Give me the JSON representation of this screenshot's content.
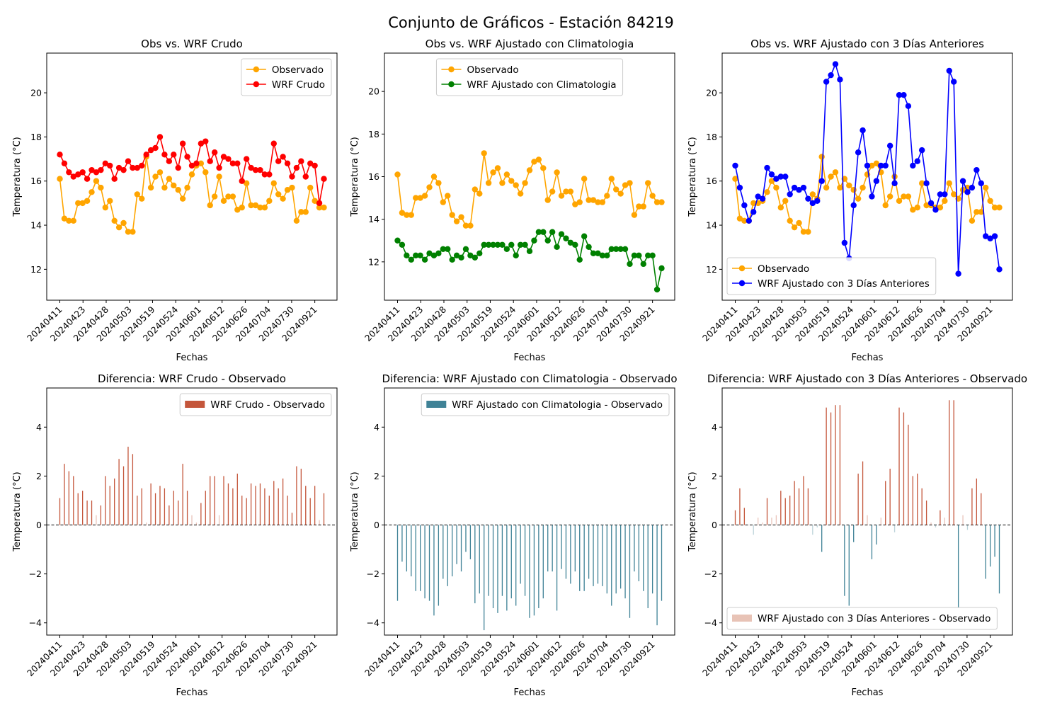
{
  "suptitle": "Conjunto de Gráficos - Estación 84219",
  "colors": {
    "observado": "#FFA500",
    "wrf_crudo": "#FF0000",
    "wrf_clim": "#008000",
    "wrf_3d": "#0000FF",
    "diff_crudo": "#C4563B",
    "diff_clim": "#3F8296",
    "diff_3d": "#E8C3B6",
    "diff_pos": "#C4563B",
    "diff_neg": "#3F8296"
  },
  "chart_data": [
    {
      "type": "line",
      "title": "Obs vs. WRF Crudo",
      "xlabel": "Fechas",
      "ylabel": "Temperatura (°C)",
      "ylim": [
        10.6,
        21.8
      ],
      "yticks": [
        12,
        14,
        16,
        18,
        20
      ],
      "x_tick_labels": [
        "20240411",
        "20240423",
        "20240428",
        "20240503",
        "20240519",
        "20240524",
        "20240601",
        "20240612",
        "20240626",
        "20240704",
        "20240730",
        "20240921"
      ],
      "legend_position": "upper-right",
      "grid": false,
      "series": [
        {
          "name": "Observado",
          "color_key": "observado",
          "values": [
            16.1,
            14.3,
            14.2,
            14.2,
            15.0,
            15.0,
            15.1,
            15.5,
            16.0,
            15.7,
            14.8,
            15.1,
            14.2,
            13.9,
            14.1,
            13.7,
            13.7,
            15.4,
            15.2,
            17.1,
            15.7,
            16.2,
            16.4,
            15.7,
            16.1,
            15.8,
            15.6,
            15.2,
            15.7,
            16.3,
            16.7,
            16.8,
            16.4,
            14.9,
            15.3,
            16.2,
            15.1,
            15.3,
            15.3,
            14.7,
            14.8,
            15.9,
            14.9,
            14.9,
            14.8,
            14.8,
            15.1,
            15.9,
            15.4,
            15.2,
            15.6,
            15.7,
            14.2,
            14.6,
            14.6,
            15.7,
            15.1,
            14.8,
            14.8
          ]
        },
        {
          "name": "WRF Crudo",
          "color_key": "wrf_crudo",
          "values": [
            17.2,
            16.8,
            16.4,
            16.2,
            16.3,
            16.4,
            16.1,
            16.5,
            16.4,
            16.5,
            16.8,
            16.7,
            16.1,
            16.6,
            16.5,
            16.9,
            16.6,
            16.6,
            16.7,
            17.2,
            17.4,
            17.5,
            18.0,
            17.2,
            16.9,
            17.2,
            16.6,
            17.7,
            17.1,
            16.7,
            16.8,
            17.7,
            17.8,
            16.9,
            17.3,
            16.6,
            17.1,
            17.0,
            16.8,
            16.8,
            16.0,
            17.0,
            16.6,
            16.5,
            16.5,
            16.3,
            16.3,
            17.7,
            16.9,
            17.1,
            16.8,
            16.2,
            16.6,
            16.9,
            16.2,
            16.8,
            16.7,
            15.0,
            16.1
          ]
        }
      ]
    },
    {
      "type": "line",
      "title": "Obs vs. WRF Ajustado con Climatologia",
      "xlabel": "Fechas",
      "ylabel": "Temperatura (°C)",
      "ylim": [
        10.2,
        21.8
      ],
      "yticks": [
        12,
        14,
        16,
        18,
        20
      ],
      "x_tick_labels": [
        "20240411",
        "20240423",
        "20240428",
        "20240503",
        "20240519",
        "20240524",
        "20240601",
        "20240612",
        "20240626",
        "20240704",
        "20240730",
        "20240921"
      ],
      "legend_position": "upper-center",
      "grid": false,
      "series": [
        {
          "name": "Observado",
          "color_key": "observado",
          "values": [
            16.1,
            14.3,
            14.2,
            14.2,
            15.0,
            15.0,
            15.1,
            15.5,
            16.0,
            15.7,
            14.8,
            15.1,
            14.2,
            13.9,
            14.1,
            13.7,
            13.7,
            15.4,
            15.2,
            17.1,
            15.7,
            16.2,
            16.4,
            15.7,
            16.1,
            15.8,
            15.6,
            15.2,
            15.7,
            16.3,
            16.7,
            16.8,
            16.4,
            14.9,
            15.3,
            16.2,
            15.1,
            15.3,
            15.3,
            14.7,
            14.8,
            15.9,
            14.9,
            14.9,
            14.8,
            14.8,
            15.1,
            15.9,
            15.4,
            15.2,
            15.6,
            15.7,
            14.2,
            14.6,
            14.6,
            15.7,
            15.1,
            14.8,
            14.8
          ]
        },
        {
          "name": "WRF Ajustado con Climatologia",
          "color_key": "wrf_clim",
          "values": [
            13.0,
            12.8,
            12.3,
            12.1,
            12.3,
            12.3,
            12.1,
            12.4,
            12.3,
            12.4,
            12.6,
            12.6,
            12.1,
            12.3,
            12.2,
            12.6,
            12.3,
            12.2,
            12.4,
            12.8,
            12.8,
            12.8,
            12.8,
            12.8,
            12.6,
            12.8,
            12.3,
            12.8,
            12.8,
            12.5,
            13.0,
            13.4,
            13.4,
            13.0,
            13.4,
            12.7,
            13.3,
            13.1,
            12.9,
            12.8,
            12.1,
            13.2,
            12.7,
            12.4,
            12.4,
            12.3,
            12.3,
            12.6,
            12.6,
            12.6,
            12.6,
            11.9,
            12.3,
            12.3,
            11.9,
            12.3,
            12.3,
            10.7,
            11.7
          ]
        }
      ]
    },
    {
      "type": "line",
      "title": "Obs vs. WRF Ajustado con 3 Días Anteriores",
      "xlabel": "Fechas",
      "ylabel": "Temperatura (°C)",
      "ylim": [
        10.6,
        21.8
      ],
      "yticks": [
        12,
        14,
        16,
        18,
        20
      ],
      "x_tick_labels": [
        "20240411",
        "20240423",
        "20240428",
        "20240503",
        "20240519",
        "20240524",
        "20240601",
        "20240612",
        "20240626",
        "20240704",
        "20240730",
        "20240921"
      ],
      "legend_position": "lower-left",
      "grid": false,
      "series": [
        {
          "name": "Observado",
          "color_key": "observado",
          "values": [
            16.1,
            14.3,
            14.2,
            14.2,
            15.0,
            15.0,
            15.1,
            15.5,
            16.0,
            15.7,
            14.8,
            15.1,
            14.2,
            13.9,
            14.1,
            13.7,
            13.7,
            15.4,
            15.2,
            17.1,
            15.7,
            16.2,
            16.4,
            15.7,
            16.1,
            15.8,
            15.6,
            15.2,
            15.7,
            16.3,
            16.7,
            16.8,
            16.4,
            14.9,
            15.3,
            16.2,
            15.1,
            15.3,
            15.3,
            14.7,
            14.8,
            15.9,
            14.9,
            14.9,
            14.8,
            14.8,
            15.1,
            15.9,
            15.4,
            15.2,
            15.6,
            15.7,
            14.2,
            14.6,
            14.6,
            15.7,
            15.1,
            14.8,
            14.8
          ]
        },
        {
          "name": "WRF Ajustado con 3 Días Anteriores",
          "color_key": "wrf_3d",
          "values": [
            16.7,
            15.7,
            14.9,
            14.2,
            14.6,
            15.3,
            15.2,
            16.6,
            16.3,
            16.1,
            16.2,
            16.2,
            15.4,
            15.7,
            15.6,
            15.7,
            15.2,
            15.0,
            15.1,
            16.0,
            20.5,
            20.8,
            21.3,
            20.6,
            13.2,
            12.5,
            14.9,
            17.3,
            18.3,
            16.7,
            15.3,
            16.0,
            16.7,
            16.7,
            17.6,
            15.9,
            19.9,
            19.9,
            19.4,
            16.7,
            16.9,
            17.4,
            15.9,
            15.0,
            14.7,
            15.4,
            15.4,
            21.0,
            20.5,
            11.8,
            16.0,
            15.5,
            15.7,
            16.5,
            15.9,
            13.5,
            13.4,
            13.5,
            12.0
          ]
        }
      ]
    },
    {
      "type": "bar",
      "title": "Diferencia: WRF Crudo - Observado",
      "xlabel": "Fechas",
      "ylabel": "Temperatura (°C)",
      "ylim": [
        -4.5,
        5.6
      ],
      "yticks": [
        -4,
        -2,
        0,
        2,
        4
      ],
      "x_tick_labels": [
        "20240411",
        "20240423",
        "20240428",
        "20240503",
        "20240519",
        "20240524",
        "20240601",
        "20240612",
        "20240626",
        "20240704",
        "20240730",
        "20240921"
      ],
      "legend_position": "upper-right",
      "zero_line": true,
      "series": [
        {
          "name": "WRF Crudo - Observado",
          "color_key": "diff_crudo",
          "values": [
            1.1,
            2.5,
            2.2,
            2.0,
            1.3,
            1.4,
            1.0,
            1.0,
            0.4,
            0.8,
            2.0,
            1.6,
            1.9,
            2.7,
            2.4,
            3.2,
            2.9,
            1.2,
            1.5,
            0.1,
            1.7,
            1.3,
            1.6,
            1.5,
            0.8,
            1.4,
            1.0,
            2.5,
            1.4,
            0.4,
            0.1,
            0.9,
            1.4,
            2.0,
            2.0,
            0.4,
            2.0,
            1.7,
            1.5,
            2.1,
            1.2,
            1.1,
            1.7,
            1.6,
            1.7,
            1.5,
            1.2,
            1.8,
            1.5,
            1.9,
            1.2,
            0.5,
            2.4,
            2.3,
            1.6,
            1.1,
            1.6,
            0.2,
            1.3
          ]
        }
      ]
    },
    {
      "type": "bar",
      "title": "Diferencia: WRF Ajustado con Climatologia - Observado",
      "xlabel": "Fechas",
      "ylabel": "Temperatura (°C)",
      "ylim": [
        -4.5,
        5.6
      ],
      "yticks": [
        -4,
        -2,
        0,
        2,
        4
      ],
      "x_tick_labels": [
        "20240411",
        "20240423",
        "20240428",
        "20240503",
        "20240519",
        "20240524",
        "20240601",
        "20240612",
        "20240626",
        "20240704",
        "20240730",
        "20240921"
      ],
      "legend_position": "upper-right",
      "zero_line": true,
      "series": [
        {
          "name": "WRF Ajustado con Climatologia - Observado",
          "color_key": "diff_clim",
          "values": [
            -3.1,
            -1.5,
            -1.9,
            -2.1,
            -2.7,
            -2.7,
            -3.0,
            -3.1,
            -3.7,
            -3.3,
            -2.2,
            -2.5,
            -2.1,
            -1.6,
            -1.9,
            -1.1,
            -1.4,
            -3.2,
            -2.8,
            -4.3,
            -2.9,
            -3.4,
            -3.6,
            -2.9,
            -3.5,
            -3.0,
            -3.3,
            -2.4,
            -2.9,
            -3.8,
            -3.7,
            -3.4,
            -3.0,
            -1.9,
            -1.9,
            -3.5,
            -1.8,
            -2.2,
            -2.4,
            -1.9,
            -2.7,
            -2.7,
            -2.2,
            -2.5,
            -2.4,
            -2.5,
            -2.8,
            -3.3,
            -2.8,
            -2.6,
            -3.0,
            -3.8,
            -1.9,
            -2.3,
            -2.7,
            -3.4,
            -2.8,
            -4.1,
            -3.1
          ]
        }
      ]
    },
    {
      "type": "bar",
      "title": "Diferencia: WRF Ajustado con 3 Días Anteriores - Observado",
      "xlabel": "Fechas",
      "ylabel": "Temperatura (°C)",
      "ylim": [
        -4.5,
        5.6
      ],
      "yticks": [
        -4,
        -2,
        0,
        2,
        4
      ],
      "x_tick_labels": [
        "20240411",
        "20240423",
        "20240428",
        "20240503",
        "20240519",
        "20240524",
        "20240601",
        "20240612",
        "20240626",
        "20240704",
        "20240730",
        "20240921"
      ],
      "legend_position": "lower-left",
      "zero_line": true,
      "series": [
        {
          "name": "WRF Ajustado con 3 Días Anteriores - Observado",
          "color_key": "diff_3d",
          "values": [
            0.6,
            1.5,
            0.7,
            0.0,
            -0.4,
            0.3,
            0.1,
            1.1,
            0.3,
            0.4,
            1.4,
            1.1,
            1.2,
            1.8,
            1.5,
            2.0,
            1.5,
            -0.4,
            -0.1,
            -1.1,
            4.8,
            4.6,
            4.9,
            4.9,
            -2.9,
            -3.3,
            -0.7,
            2.1,
            2.6,
            0.4,
            -1.4,
            -0.8,
            0.3,
            1.8,
            2.3,
            -0.3,
            4.8,
            4.6,
            4.1,
            2.0,
            2.1,
            1.5,
            1.0,
            0.1,
            -0.1,
            0.6,
            0.3,
            5.1,
            5.1,
            -3.4,
            0.4,
            -0.2,
            1.5,
            1.9,
            1.3,
            -2.2,
            -1.7,
            -1.3,
            -2.8
          ]
        }
      ]
    }
  ]
}
